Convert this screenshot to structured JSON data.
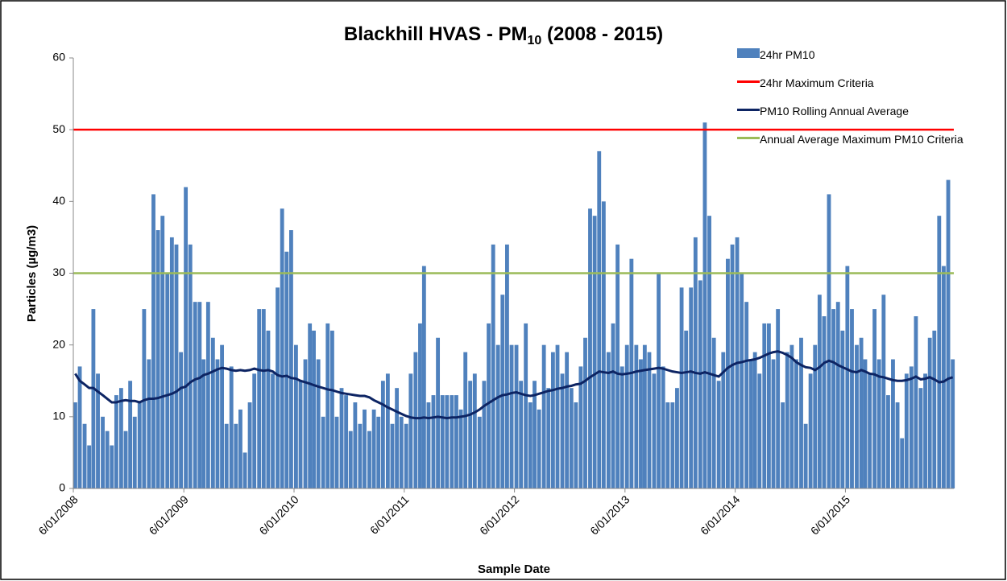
{
  "chart_data": {
    "type": "bar",
    "title": {
      "text": "Blackhill HVAS - PM",
      "subscript": "10",
      "suffix": " (2008 - 2015)"
    },
    "x_label": "Sample Date",
    "y_label": "Particles (µg/m3)",
    "ylim": [
      0,
      60
    ],
    "yticks": [
      0,
      10,
      20,
      30,
      40,
      50,
      60
    ],
    "xlim": [
      "2008-01-06",
      "2015-12-31"
    ],
    "xticks": [
      {
        "value": "2008-01-06",
        "label": "6/01/2008"
      },
      {
        "value": "2009-01-06",
        "label": "6/01/2009"
      },
      {
        "value": "2010-01-06",
        "label": "6/01/2010"
      },
      {
        "value": "2011-01-06",
        "label": "6/01/2011"
      },
      {
        "value": "2012-01-06",
        "label": "6/01/2012"
      },
      {
        "value": "2013-01-06",
        "label": "6/01/2013"
      },
      {
        "value": "2014-01-06",
        "label": "6/01/2014"
      },
      {
        "value": "2015-01-06",
        "label": "6/01/2015"
      }
    ],
    "grid": false,
    "x": [
      "2008-01-06",
      "2008-01-21",
      "2008-02-06",
      "2008-02-21",
      "2008-03-06",
      "2008-03-21",
      "2008-04-06",
      "2008-04-21",
      "2008-05-06",
      "2008-05-21",
      "2008-06-06",
      "2008-06-21",
      "2008-07-06",
      "2008-07-21",
      "2008-08-06",
      "2008-08-21",
      "2008-09-06",
      "2008-09-21",
      "2008-10-06",
      "2008-10-21",
      "2008-11-06",
      "2008-11-21",
      "2008-12-06",
      "2008-12-21",
      "2009-01-06",
      "2009-01-21",
      "2009-02-06",
      "2009-02-21",
      "2009-03-06",
      "2009-03-21",
      "2009-04-06",
      "2009-04-21",
      "2009-05-06",
      "2009-05-21",
      "2009-06-06",
      "2009-06-21",
      "2009-07-06",
      "2009-07-21",
      "2009-08-06",
      "2009-08-21",
      "2009-09-06",
      "2009-09-21",
      "2009-10-06",
      "2009-10-21",
      "2009-11-06",
      "2009-11-21",
      "2009-12-06",
      "2009-12-21",
      "2010-01-06",
      "2010-01-21",
      "2010-02-06",
      "2010-02-21",
      "2010-03-06",
      "2010-03-21",
      "2010-04-06",
      "2010-04-21",
      "2010-05-06",
      "2010-05-21",
      "2010-06-06",
      "2010-06-21",
      "2010-07-06",
      "2010-07-21",
      "2010-08-06",
      "2010-08-21",
      "2010-09-06",
      "2010-09-21",
      "2010-10-06",
      "2010-10-21",
      "2010-11-06",
      "2010-11-21",
      "2010-12-06",
      "2010-12-21",
      "2011-01-06",
      "2011-01-21",
      "2011-02-06",
      "2011-02-21",
      "2011-03-06",
      "2011-03-21",
      "2011-04-06",
      "2011-04-21",
      "2011-05-06",
      "2011-05-21",
      "2011-06-06",
      "2011-06-21",
      "2011-07-06",
      "2011-07-21",
      "2011-08-06",
      "2011-08-21",
      "2011-09-06",
      "2011-09-21",
      "2011-10-06",
      "2011-10-21",
      "2011-11-06",
      "2011-11-21",
      "2011-12-06",
      "2011-12-21",
      "2012-01-06",
      "2012-01-21",
      "2012-02-06",
      "2012-02-21",
      "2012-03-06",
      "2012-03-21",
      "2012-04-06",
      "2012-04-21",
      "2012-05-06",
      "2012-05-21",
      "2012-06-06",
      "2012-06-21",
      "2012-07-06",
      "2012-07-21",
      "2012-08-06",
      "2012-08-21",
      "2012-09-06",
      "2012-09-21",
      "2012-10-06",
      "2012-10-21",
      "2012-11-06",
      "2012-11-21",
      "2012-12-06",
      "2012-12-21",
      "2013-01-06",
      "2013-01-21",
      "2013-02-06",
      "2013-02-21",
      "2013-03-06",
      "2013-03-21",
      "2013-04-06",
      "2013-04-21",
      "2013-05-06",
      "2013-05-21",
      "2013-06-06",
      "2013-06-21",
      "2013-07-06",
      "2013-07-21",
      "2013-08-06",
      "2013-08-21",
      "2013-09-06",
      "2013-09-21",
      "2013-10-06",
      "2013-10-21",
      "2013-11-06",
      "2013-11-21",
      "2013-12-06",
      "2013-12-21",
      "2014-01-06",
      "2014-01-21",
      "2014-02-06",
      "2014-02-21",
      "2014-03-06",
      "2014-03-21",
      "2014-04-06",
      "2014-04-21",
      "2014-05-06",
      "2014-05-21",
      "2014-06-06",
      "2014-06-21",
      "2014-07-06",
      "2014-07-21",
      "2014-08-06",
      "2014-08-21",
      "2014-09-06",
      "2014-09-21",
      "2014-10-06",
      "2014-10-21",
      "2014-11-06",
      "2014-11-21",
      "2014-12-06",
      "2014-12-21",
      "2015-01-06",
      "2015-01-21",
      "2015-02-06",
      "2015-02-21",
      "2015-03-06",
      "2015-03-21",
      "2015-04-06",
      "2015-04-21",
      "2015-05-06",
      "2015-05-21",
      "2015-06-06",
      "2015-06-21",
      "2015-07-06",
      "2015-07-21",
      "2015-08-06",
      "2015-08-21",
      "2015-09-06",
      "2015-09-21",
      "2015-10-06",
      "2015-10-21",
      "2015-11-06",
      "2015-11-21",
      "2015-12-06",
      "2015-12-21"
    ],
    "series": [
      {
        "name": "24hr PM10",
        "type": "bar",
        "color": "#4f81bd",
        "values": [
          12,
          17,
          9,
          6,
          25,
          16,
          10,
          8,
          6,
          13,
          14,
          8,
          15,
          10,
          12,
          25,
          18,
          41,
          36,
          38,
          30,
          35,
          34,
          19,
          42,
          34,
          26,
          26,
          18,
          26,
          21,
          18,
          20,
          9,
          17,
          9,
          11,
          5,
          12,
          16,
          25,
          25,
          22,
          16,
          28,
          39,
          33,
          36,
          20,
          15,
          18,
          23,
          22,
          18,
          10,
          23,
          22,
          10,
          14,
          13,
          8,
          12,
          9,
          11,
          8,
          11,
          10,
          15,
          16,
          9,
          14,
          10,
          9,
          16,
          19,
          23,
          31,
          12,
          13,
          21,
          13,
          13,
          13,
          13,
          11,
          19,
          15,
          16,
          10,
          15,
          23,
          34,
          20,
          27,
          34,
          20,
          20,
          15,
          23,
          12,
          15,
          11,
          20,
          14,
          19,
          20,
          16,
          19,
          14,
          12,
          17,
          21,
          39,
          38,
          47,
          40,
          19,
          23,
          34,
          17,
          20,
          32,
          20,
          18,
          20,
          19,
          16,
          30,
          17,
          12,
          12,
          14,
          28,
          22,
          28,
          35,
          29,
          51,
          38,
          21,
          15,
          19,
          32,
          34,
          35,
          30,
          26,
          18,
          19,
          16,
          23,
          23,
          18,
          25,
          12,
          19,
          20,
          18,
          21,
          9,
          16,
          20,
          27,
          24,
          41,
          25,
          26,
          22,
          31,
          25,
          20,
          21,
          18,
          16,
          25,
          18,
          27,
          13,
          18,
          12,
          7,
          16,
          17,
          24,
          14,
          16,
          21,
          22,
          38,
          31,
          43,
          18
        ]
      },
      {
        "name": "24hr Maximum Criteria",
        "type": "hline",
        "color": "#ff0000",
        "value": 50
      },
      {
        "name": "PM10 Rolling Annual Average",
        "type": "line",
        "color": "#0d2463",
        "values": [
          16,
          15,
          14.5,
          14,
          14,
          13.5,
          13,
          12.5,
          12,
          12,
          12.2,
          12.3,
          12.2,
          12.2,
          12,
          12.3,
          12.5,
          12.5,
          12.6,
          12.8,
          13,
          13.2,
          13.5,
          14,
          14.2,
          14.8,
          15.2,
          15.4,
          15.8,
          16,
          16.3,
          16.6,
          16.8,
          16.7,
          16.5,
          16.4,
          16.5,
          16.4,
          16.5,
          16.7,
          16.5,
          16.4,
          16.5,
          16.3,
          15.8,
          15.6,
          15.7,
          15.4,
          15.3,
          15,
          14.8,
          14.6,
          14.4,
          14.2,
          14,
          13.8,
          13.7,
          13.5,
          13.3,
          13.2,
          13.1,
          13,
          12.9,
          12.9,
          12.7,
          12.3,
          12,
          11.7,
          11.3,
          11,
          10.7,
          10.4,
          10.1,
          9.9,
          9.8,
          9.8,
          9.9,
          9.8,
          9.9,
          10,
          9.9,
          9.8,
          9.9,
          9.9,
          10,
          10.1,
          10.3,
          10.6,
          11,
          11.5,
          11.9,
          12.3,
          12.7,
          13,
          13.1,
          13.3,
          13.4,
          13.2,
          13,
          12.9,
          13,
          13.2,
          13.4,
          13.6,
          13.7,
          13.9,
          14,
          14.2,
          14.3,
          14.5,
          14.6,
          15,
          15.5,
          15.9,
          16.3,
          16.2,
          16.1,
          16.3,
          16,
          15.9,
          16,
          16.1,
          16.3,
          16.4,
          16.5,
          16.6,
          16.7,
          16.8,
          16.7,
          16.5,
          16.3,
          16.2,
          16.1,
          16.2,
          16.3,
          16.1,
          16,
          16.2,
          16,
          15.8,
          15.6,
          16.2,
          16.8,
          17.2,
          17.5,
          17.6,
          17.8,
          17.9,
          18,
          18.2,
          18.5,
          18.8,
          19,
          19.1,
          18.9,
          18.6,
          18.2,
          17.6,
          17.2,
          16.9,
          16.8,
          16.5,
          16.9,
          17.5,
          17.8,
          17.6,
          17.2,
          16.9,
          16.6,
          16.3,
          16.2,
          16.5,
          16.3,
          16,
          15.9,
          15.6,
          15.5,
          15.3,
          15.1,
          15,
          15,
          15.1,
          15.3,
          15.6,
          15.2,
          15.3,
          15.5,
          15.2,
          14.8,
          14.9,
          15.3,
          15.5
        ]
      },
      {
        "name": "Annual Average Maximum PM10 Criteria",
        "type": "hline",
        "color": "#9bbb59",
        "value": 30
      }
    ]
  }
}
